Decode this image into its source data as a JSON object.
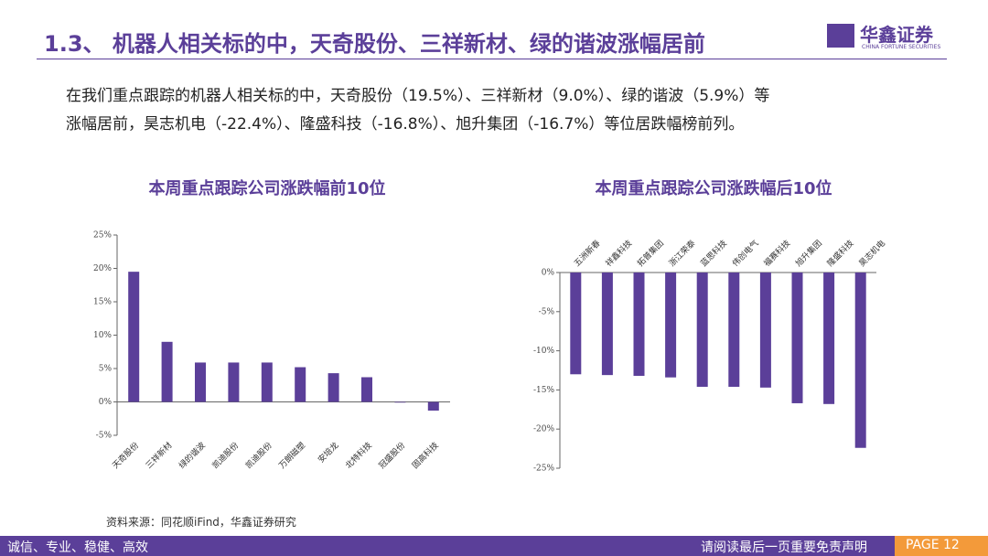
{
  "header": {
    "title": "1.3、 机器人相关标的中，天奇股份、三祥新材、绿的谐波涨幅居前",
    "logo": "华鑫证券",
    "logo_sub": "CHINA FORTUNE SECURITIES"
  },
  "body": {
    "lines": [
      "在我们重点跟踪的机器人相关标的中，天奇股份（19.5%）、三祥新材（9.0%）、绿的谐波（5.9%）等",
      "涨幅居前，昊志机电（-22.4%）、隆盛科技（-16.8%）、旭升集团（-16.7%）等位居跌幅榜前列。"
    ]
  },
  "chart_data": [
    {
      "type": "bar",
      "title": "本周重点跟踪公司涨跌幅前10位",
      "categories": [
        "天奇股份",
        "三祥新材",
        "绿的谐波",
        "凯迪股份",
        "凯迪股份",
        "万朗磁塑",
        "安培龙",
        "北特科技",
        "冠盛股份",
        "固高科技"
      ],
      "values": [
        19.5,
        9.0,
        5.9,
        5.9,
        5.9,
        5.2,
        4.3,
        3.7,
        -0.1,
        -1.3
      ],
      "color": "#5b3f99",
      "ylim": [
        -5,
        25
      ],
      "yticks": [
        {
          "value": -5,
          "label": "-5%"
        },
        {
          "value": 0,
          "label": "0%"
        },
        {
          "value": 5,
          "label": "5%"
        },
        {
          "value": 10,
          "label": "10%"
        },
        {
          "value": 15,
          "label": "15%"
        },
        {
          "value": 20,
          "label": "20%"
        },
        {
          "value": 25,
          "label": "25%"
        }
      ]
    },
    {
      "type": "bar",
      "title": "本周重点跟踪公司涨跌幅后10位",
      "categories": [
        "五洲新春",
        "祥鑫科技",
        "拓普集团",
        "浙江荣泰",
        "蓝思科技",
        "伟创电气",
        "福赛科技",
        "旭升集团",
        "隆盛科技",
        "昊志机电"
      ],
      "values": [
        -13.0,
        -13.1,
        -13.2,
        -13.4,
        -14.6,
        -14.6,
        -14.7,
        -16.7,
        -16.8,
        -22.4
      ],
      "color": "#5b3f99",
      "ylim": [
        -25,
        0
      ],
      "yticks": [
        {
          "value": -25,
          "label": "-25%"
        },
        {
          "value": -20,
          "label": "-20%"
        },
        {
          "value": -15,
          "label": "-15%"
        },
        {
          "value": -10,
          "label": "-10%"
        },
        {
          "value": -5,
          "label": "-5%"
        },
        {
          "value": 0,
          "label": "0%"
        }
      ]
    }
  ],
  "source": "资料来源：同花顺iFind，华鑫证券研究",
  "footer": {
    "left": "诚信、专业、稳健、高效",
    "right": "请阅读最后一页重要免责声明",
    "page": "PAGE 12"
  }
}
